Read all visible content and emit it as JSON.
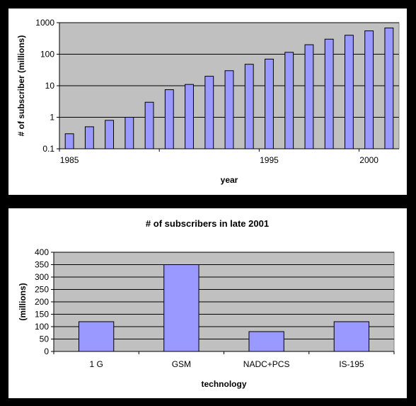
{
  "chart_data": [
    {
      "type": "bar",
      "title": "",
      "xlabel": "year",
      "ylabel": "# of subscriber (millions)",
      "yscale": "log",
      "ylim": [
        0.1,
        1000
      ],
      "yticks": [
        "0.1",
        "1",
        "10",
        "100",
        "1000"
      ],
      "xticks": [
        "1985",
        "1995",
        "2000"
      ],
      "grid": true,
      "legend": "none",
      "bar_color": "#9999FF",
      "plot_bg": "#C0C0C0",
      "categories": [
        1985,
        1986,
        1987,
        1988,
        1989,
        1990,
        1991,
        1992,
        1993,
        1994,
        1995,
        1996,
        1997,
        1998,
        1999,
        2000,
        2001
      ],
      "values": [
        0.3,
        0.5,
        0.8,
        1,
        3,
        7.5,
        11,
        20,
        30,
        48,
        70,
        115,
        200,
        300,
        400,
        550,
        680
      ]
    },
    {
      "type": "bar",
      "title": "# of subscribers in late 2001",
      "xlabel": "technology",
      "ylabel": "(millions)",
      "ylim": [
        0,
        400
      ],
      "yticks": [
        "0",
        "50",
        "100",
        "150",
        "200",
        "250",
        "300",
        "350",
        "400"
      ],
      "grid": true,
      "legend": "none",
      "bar_color": "#9999FF",
      "plot_bg": "#C0C0C0",
      "categories": [
        "1 G",
        "GSM",
        "NADC+PCS",
        "IS-195"
      ],
      "values": [
        120,
        350,
        80,
        120
      ]
    }
  ]
}
